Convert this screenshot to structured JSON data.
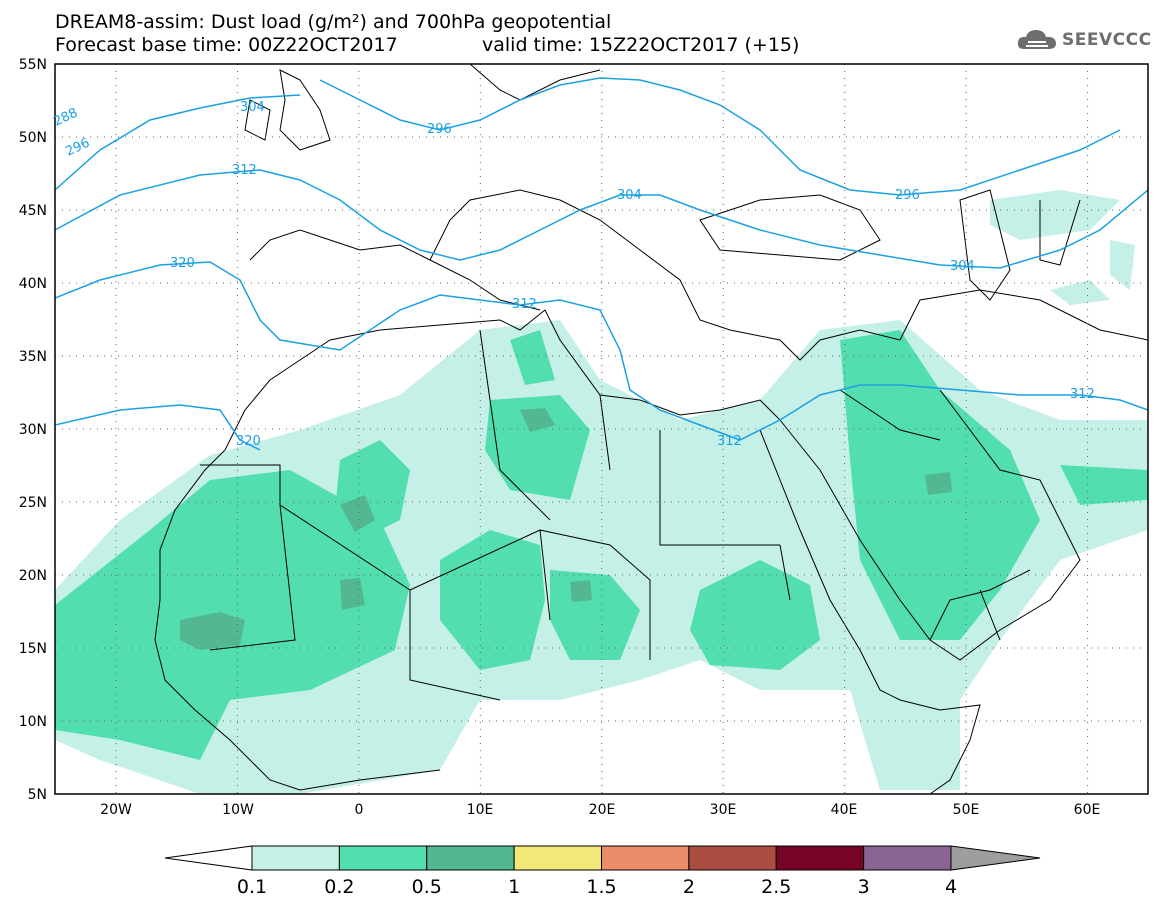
{
  "title_line1": "DREAM8-assim: Dust load (g/m²) and 700hPa geopotential",
  "title_line2a": "Forecast base time: 00Z22OCT2017",
  "title_line2b": "valid time: 15Z22OCT2017 (+15)",
  "logo_text": "SEEVCCC",
  "lat_labels": [
    "55N",
    "50N",
    "45N",
    "40N",
    "35N",
    "30N",
    "25N",
    "20N",
    "15N",
    "10N",
    "5N"
  ],
  "lon_labels": [
    "20W",
    "10W",
    "0",
    "10E",
    "20E",
    "30E",
    "40E",
    "50E",
    "60E"
  ],
  "contour_labels": [
    "288",
    "296",
    "304",
    "296",
    "312",
    "304",
    "296",
    "312",
    "320",
    "304",
    "312",
    "312",
    "320"
  ],
  "colorbar": {
    "ticks": [
      "0.1",
      "0.2",
      "0.5",
      "1",
      "1.5",
      "2",
      "2.5",
      "3",
      "4"
    ],
    "colors": [
      "#c5f0e7",
      "#52deae",
      "#53b791",
      "#f3e778",
      "#ec8d69",
      "#ab4e42",
      "#770427",
      "#8a6594",
      "#9e9e9e"
    ]
  },
  "colors": {
    "dust_0_1": "#c5f0e7",
    "dust_0_2": "#52deae",
    "dust_0_5": "#53b791",
    "geopotential": "#1ba1e2"
  }
}
